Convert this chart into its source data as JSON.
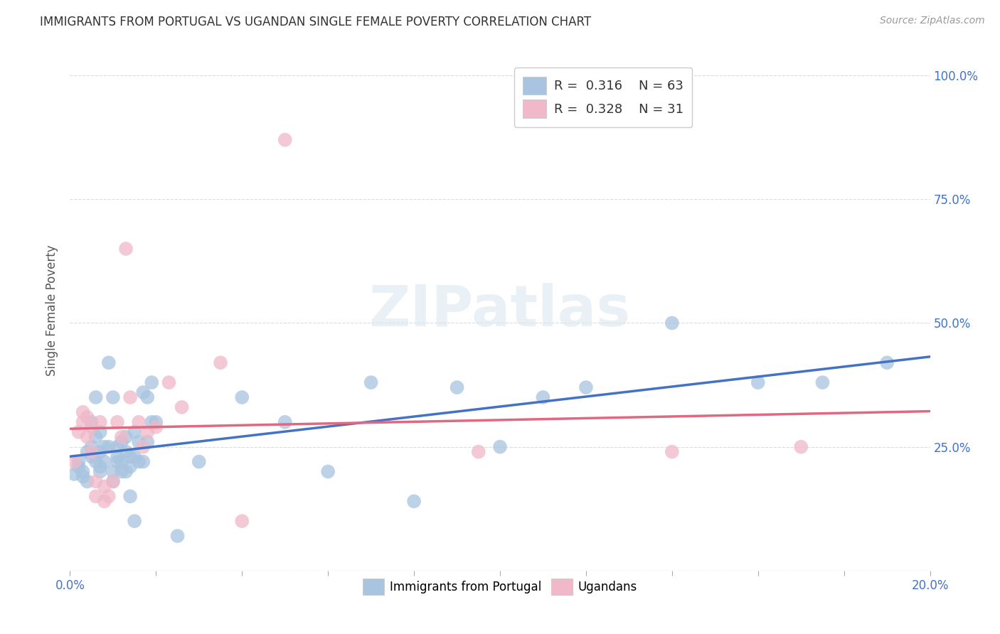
{
  "title": "IMMIGRANTS FROM PORTUGAL VS UGANDAN SINGLE FEMALE POVERTY CORRELATION CHART",
  "source": "Source: ZipAtlas.com",
  "ylabel": "Single Female Poverty",
  "ytick_vals": [
    0.0,
    0.25,
    0.5,
    0.75,
    1.0
  ],
  "ytick_labels": [
    "",
    "25.0%",
    "50.0%",
    "75.0%",
    "100.0%"
  ],
  "xlim": [
    0.0,
    0.2
  ],
  "ylim": [
    0.0,
    1.05
  ],
  "legend_labels_bottom": [
    "Immigrants from Portugal",
    "Ugandans"
  ],
  "blue_color": "#a8c4e0",
  "pink_color": "#f0b8c8",
  "blue_line_color": "#4472c4",
  "pink_line_color": "#e06880",
  "watermark": "ZIPatlas",
  "blue_scatter": [
    [
      0.001,
      0.195
    ],
    [
      0.002,
      0.21
    ],
    [
      0.002,
      0.22
    ],
    [
      0.003,
      0.19
    ],
    [
      0.003,
      0.2
    ],
    [
      0.004,
      0.24
    ],
    [
      0.004,
      0.18
    ],
    [
      0.005,
      0.23
    ],
    [
      0.005,
      0.25
    ],
    [
      0.005,
      0.3
    ],
    [
      0.006,
      0.27
    ],
    [
      0.006,
      0.35
    ],
    [
      0.006,
      0.22
    ],
    [
      0.007,
      0.24
    ],
    [
      0.007,
      0.21
    ],
    [
      0.007,
      0.28
    ],
    [
      0.007,
      0.2
    ],
    [
      0.008,
      0.25
    ],
    [
      0.008,
      0.22
    ],
    [
      0.009,
      0.42
    ],
    [
      0.009,
      0.25
    ],
    [
      0.01,
      0.2
    ],
    [
      0.01,
      0.35
    ],
    [
      0.01,
      0.18
    ],
    [
      0.011,
      0.22
    ],
    [
      0.011,
      0.23
    ],
    [
      0.011,
      0.25
    ],
    [
      0.012,
      0.2
    ],
    [
      0.012,
      0.26
    ],
    [
      0.012,
      0.22
    ],
    [
      0.013,
      0.24
    ],
    [
      0.013,
      0.2
    ],
    [
      0.013,
      0.27
    ],
    [
      0.014,
      0.21
    ],
    [
      0.014,
      0.23
    ],
    [
      0.014,
      0.15
    ],
    [
      0.015,
      0.23
    ],
    [
      0.015,
      0.28
    ],
    [
      0.015,
      0.1
    ],
    [
      0.016,
      0.22
    ],
    [
      0.016,
      0.26
    ],
    [
      0.017,
      0.22
    ],
    [
      0.017,
      0.36
    ],
    [
      0.018,
      0.35
    ],
    [
      0.018,
      0.26
    ],
    [
      0.019,
      0.38
    ],
    [
      0.019,
      0.3
    ],
    [
      0.02,
      0.3
    ],
    [
      0.025,
      0.07
    ],
    [
      0.03,
      0.22
    ],
    [
      0.04,
      0.35
    ],
    [
      0.05,
      0.3
    ],
    [
      0.06,
      0.2
    ],
    [
      0.07,
      0.38
    ],
    [
      0.08,
      0.14
    ],
    [
      0.09,
      0.37
    ],
    [
      0.1,
      0.25
    ],
    [
      0.11,
      0.35
    ],
    [
      0.12,
      0.37
    ],
    [
      0.14,
      0.5
    ],
    [
      0.16,
      0.38
    ],
    [
      0.175,
      0.38
    ],
    [
      0.19,
      0.42
    ]
  ],
  "pink_scatter": [
    [
      0.001,
      0.22
    ],
    [
      0.002,
      0.28
    ],
    [
      0.003,
      0.32
    ],
    [
      0.003,
      0.3
    ],
    [
      0.004,
      0.27
    ],
    [
      0.004,
      0.31
    ],
    [
      0.005,
      0.24
    ],
    [
      0.005,
      0.29
    ],
    [
      0.006,
      0.18
    ],
    [
      0.006,
      0.15
    ],
    [
      0.007,
      0.3
    ],
    [
      0.008,
      0.17
    ],
    [
      0.008,
      0.14
    ],
    [
      0.009,
      0.15
    ],
    [
      0.01,
      0.18
    ],
    [
      0.011,
      0.3
    ],
    [
      0.012,
      0.27
    ],
    [
      0.013,
      0.65
    ],
    [
      0.014,
      0.35
    ],
    [
      0.016,
      0.3
    ],
    [
      0.017,
      0.25
    ],
    [
      0.018,
      0.28
    ],
    [
      0.02,
      0.29
    ],
    [
      0.023,
      0.38
    ],
    [
      0.026,
      0.33
    ],
    [
      0.035,
      0.42
    ],
    [
      0.04,
      0.1
    ],
    [
      0.05,
      0.87
    ],
    [
      0.095,
      0.24
    ],
    [
      0.14,
      0.24
    ],
    [
      0.17,
      0.25
    ]
  ]
}
